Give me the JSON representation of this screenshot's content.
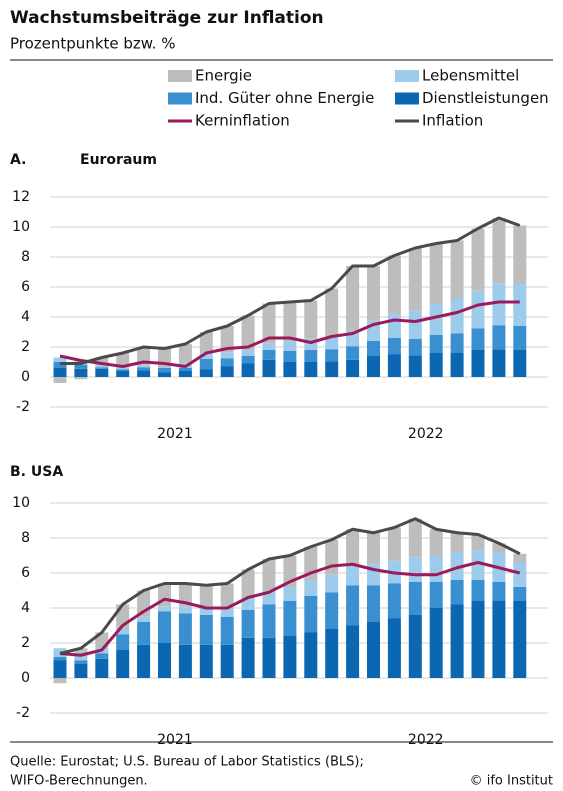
{
  "title": "Wachstumsbeiträge zur Inflation",
  "subtitle": "Prozentpunkte bzw. %",
  "source": [
    "Quelle: Eurostat; U.S. Bureau of Labor Statistics (BLS);",
    "WIFO-Berechnungen."
  ],
  "credit": "© ifo Institut",
  "chart_data": [
    {
      "type": "bar",
      "stacked": true,
      "panel": "A.",
      "title": "Euroraum",
      "categories": [
        null,
        null,
        null,
        null,
        null,
        null,
        null,
        null,
        null,
        null,
        null,
        null,
        null,
        null,
        null,
        null,
        null,
        null,
        null,
        null,
        null,
        null,
        null
      ],
      "year_labels": [
        "2021",
        "2022"
      ],
      "ylim": [
        -2,
        12
      ],
      "yticks": [
        -2,
        0,
        2,
        4,
        6,
        8,
        10,
        12
      ],
      "grid": true,
      "series": [
        {
          "name": "Energie",
          "type": "bar",
          "color": "#bdbdbd",
          "values": [
            -0.4,
            -0.15,
            0.45,
            0.95,
            1.25,
            1.2,
            1.25,
            1.4,
            1.75,
            2.3,
            2.65,
            2.6,
            2.55,
            3.15,
            4.3,
            3.65,
            3.9,
            4.15,
            4.0,
            3.9,
            4.15,
            4.35,
            3.9
          ]
        },
        {
          "name": "Lebensmittel",
          "type": "bar",
          "color": "#9dcbeb",
          "values": [
            0.3,
            0.25,
            0.2,
            0.15,
            0.1,
            0.1,
            0.35,
            0.4,
            0.4,
            0.4,
            0.45,
            0.65,
            0.75,
            0.9,
            1.05,
            1.35,
            1.6,
            1.9,
            2.1,
            2.3,
            2.5,
            2.8,
            2.8
          ]
        },
        {
          "name": "Ind. Güter ohne Energie",
          "type": "bar",
          "color": "#3a8fd0",
          "values": [
            0.4,
            0.25,
            0.1,
            0.1,
            0.2,
            0.3,
            0.2,
            0.7,
            0.55,
            0.5,
            0.65,
            0.75,
            0.8,
            0.8,
            0.9,
            1.0,
            1.1,
            1.1,
            1.2,
            1.3,
            1.45,
            1.6,
            1.6
          ]
        },
        {
          "name": "Dienstleistungen",
          "type": "bar",
          "color": "#0b67b2",
          "values": [
            0.6,
            0.55,
            0.55,
            0.4,
            0.45,
            0.3,
            0.4,
            0.5,
            0.7,
            0.9,
            1.15,
            1.0,
            1.0,
            1.05,
            1.15,
            1.4,
            1.5,
            1.45,
            1.6,
            1.6,
            1.8,
            1.85,
            1.8
          ]
        },
        {
          "name": "Kerninflation",
          "type": "line",
          "color": "#9b1b5a",
          "values": [
            1.4,
            1.1,
            0.9,
            0.7,
            1.0,
            0.9,
            0.7,
            1.6,
            1.9,
            2.0,
            2.6,
            2.6,
            2.3,
            2.7,
            2.9,
            3.5,
            3.8,
            3.7,
            4.0,
            4.3,
            4.8,
            5.0,
            5.0
          ]
        },
        {
          "name": "Inflation",
          "type": "line",
          "color": "#4a4a4a",
          "values": [
            0.9,
            0.9,
            1.3,
            1.6,
            2.0,
            1.9,
            2.2,
            3.0,
            3.4,
            4.1,
            4.9,
            5.0,
            5.1,
            5.9,
            7.4,
            7.4,
            8.1,
            8.6,
            8.9,
            9.1,
            9.9,
            10.6,
            10.1
          ]
        }
      ]
    },
    {
      "type": "bar",
      "stacked": true,
      "title": "B. USA",
      "categories": [
        null,
        null,
        null,
        null,
        null,
        null,
        null,
        null,
        null,
        null,
        null,
        null,
        null,
        null,
        null,
        null,
        null,
        null,
        null,
        null,
        null,
        null,
        null
      ],
      "year_labels": [
        "2021",
        "2022"
      ],
      "ylim": [
        -2,
        10
      ],
      "yticks": [
        -2,
        0,
        2,
        4,
        6,
        8,
        10
      ],
      "grid": true,
      "series": [
        {
          "type": "bar",
          "color": "#bdbdbd",
          "values": [
            -0.3,
            0.2,
            0.8,
            1.4,
            1.5,
            1.3,
            1.3,
            1.2,
            1.3,
            1.6,
            1.8,
            1.8,
            1.9,
            2.0,
            2.1,
            1.8,
            1.9,
            2.2,
            1.5,
            1.1,
            0.9,
            0.5,
            0.5
          ]
        },
        {
          "type": "bar",
          "color": "#9dcbeb",
          "values": [
            0.5,
            0.5,
            0.4,
            0.3,
            0.3,
            0.3,
            0.4,
            0.5,
            0.6,
            0.7,
            0.8,
            0.8,
            0.9,
            1.0,
            1.1,
            1.2,
            1.3,
            1.4,
            1.5,
            1.6,
            1.7,
            1.7,
            1.4
          ]
        },
        {
          "type": "bar",
          "color": "#3a8fd0",
          "values": [
            0.2,
            0.2,
            0.3,
            0.9,
            1.3,
            1.8,
            1.8,
            1.7,
            1.6,
            1.6,
            1.9,
            2.0,
            2.1,
            2.1,
            2.3,
            2.1,
            2.0,
            1.9,
            1.5,
            1.4,
            1.2,
            1.1,
            0.8
          ]
        },
        {
          "type": "bar",
          "color": "#0b67b2",
          "values": [
            1.0,
            0.8,
            1.1,
            1.6,
            1.9,
            2.0,
            1.9,
            1.9,
            1.9,
            2.3,
            2.3,
            2.4,
            2.6,
            2.8,
            3.0,
            3.2,
            3.4,
            3.6,
            4.0,
            4.2,
            4.4,
            4.4,
            4.4
          ]
        },
        {
          "type": "line",
          "color": "#9b1b5a",
          "values": [
            1.4,
            1.3,
            1.6,
            3.0,
            3.8,
            4.5,
            4.3,
            4.0,
            4.0,
            4.6,
            4.9,
            5.5,
            6.0,
            6.4,
            6.5,
            6.2,
            6.0,
            5.9,
            5.9,
            6.3,
            6.6,
            6.3,
            6.0
          ]
        },
        {
          "type": "line",
          "color": "#4a4a4a",
          "values": [
            1.4,
            1.7,
            2.6,
            4.2,
            5.0,
            5.4,
            5.4,
            5.3,
            5.4,
            6.2,
            6.8,
            7.0,
            7.5,
            7.9,
            8.5,
            8.3,
            8.6,
            9.1,
            8.5,
            8.3,
            8.2,
            7.7,
            7.1
          ]
        }
      ]
    }
  ]
}
